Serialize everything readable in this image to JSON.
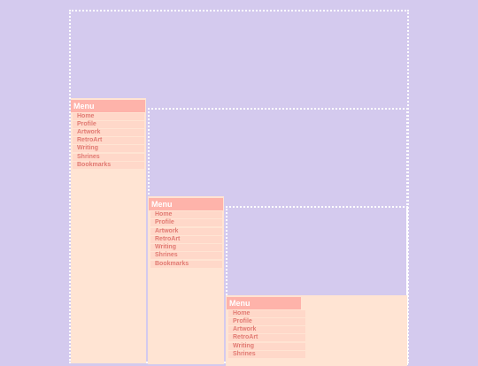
{
  "colors": {
    "background": "#d4caee",
    "panel": "#ffe4d3",
    "menu_header": "#feb3aa",
    "menu_item_bg": "#ffd8c9",
    "menu_item_text": "#e17b73",
    "frame_border": "#ffffff"
  },
  "levels": [
    {
      "menu": {
        "title": "Menu",
        "items": [
          {
            "label": "Home"
          },
          {
            "label": "Profile"
          },
          {
            "label": "Artwork"
          },
          {
            "label": "RetroArt"
          },
          {
            "label": "Writing"
          },
          {
            "label": "Shrines"
          },
          {
            "label": "Bookmarks"
          }
        ]
      }
    },
    {
      "menu": {
        "title": "Menu",
        "items": [
          {
            "label": "Home"
          },
          {
            "label": "Profile"
          },
          {
            "label": "Artwork"
          },
          {
            "label": "RetroArt"
          },
          {
            "label": "Writing"
          },
          {
            "label": "Shrines"
          },
          {
            "label": "Bookmarks"
          }
        ]
      }
    },
    {
      "menu": {
        "title": "Menu",
        "items": [
          {
            "label": "Home"
          },
          {
            "label": "Profile"
          },
          {
            "label": "Artwork"
          },
          {
            "label": "RetroArt"
          },
          {
            "label": "Writing"
          },
          {
            "label": "Shrines"
          }
        ]
      }
    }
  ]
}
